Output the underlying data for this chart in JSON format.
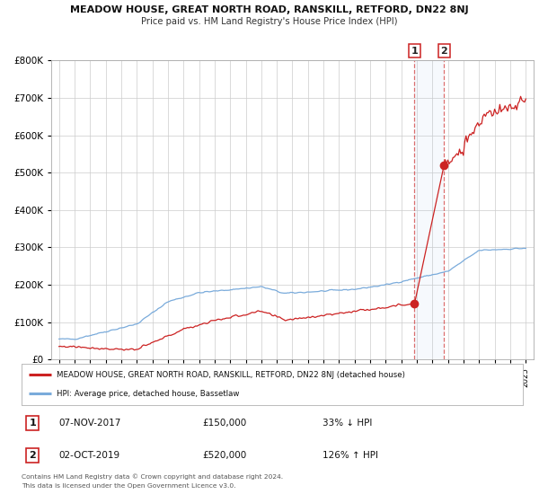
{
  "title": "MEADOW HOUSE, GREAT NORTH ROAD, RANSKILL, RETFORD, DN22 8NJ",
  "subtitle": "Price paid vs. HM Land Registry's House Price Index (HPI)",
  "legend_line1": "MEADOW HOUSE, GREAT NORTH ROAD, RANSKILL, RETFORD, DN22 8NJ (detached house)",
  "legend_line2": "HPI: Average price, detached house, Bassetlaw",
  "transaction1_date": "07-NOV-2017",
  "transaction1_price": "£150,000",
  "transaction1_hpi": "33% ↓ HPI",
  "transaction2_date": "02-OCT-2019",
  "transaction2_price": "£520,000",
  "transaction2_hpi": "126% ↑ HPI",
  "footer1": "Contains HM Land Registry data © Crown copyright and database right 2024.",
  "footer2": "This data is licensed under the Open Government Licence v3.0.",
  "hpi_color": "#7aabdb",
  "price_color": "#cc2222",
  "transaction1_x": 2017.85,
  "transaction2_x": 2019.75,
  "transaction1_y": 150000,
  "transaction2_y": 520000,
  "ylim": [
    0,
    800000
  ],
  "xlim_start": 1994.5,
  "xlim_end": 2025.5,
  "background_color": "#ffffff",
  "grid_color": "#cccccc"
}
